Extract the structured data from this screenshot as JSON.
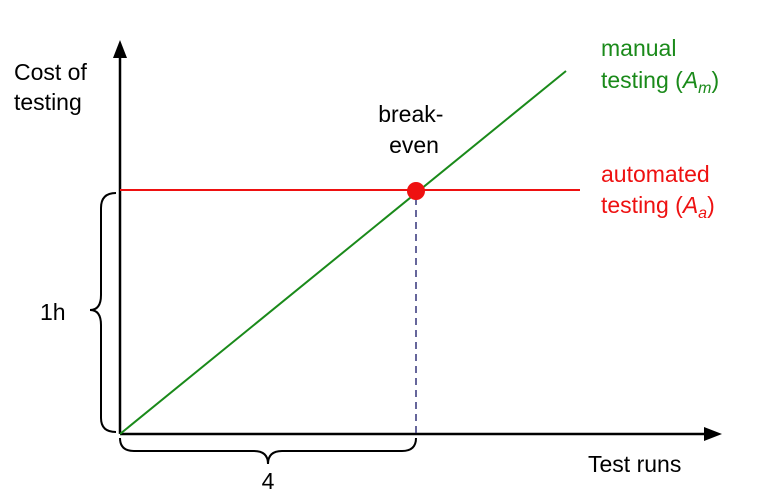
{
  "y_axis_label": [
    "Cost of",
    "testing"
  ],
  "x_axis_label": "Test runs",
  "break_even_label": [
    "break-",
    "even"
  ],
  "brace_y_label": "1h",
  "brace_x_label": "4",
  "manual": {
    "label_line1": "manual",
    "label_line2_prefix": "testing (",
    "symbol": "A",
    "subscript": "m",
    "label_line2_suffix": ")",
    "color": "#1a8a1a"
  },
  "automated": {
    "label_line1": "automated",
    "label_line2_prefix": "testing (",
    "symbol": "A",
    "subscript": "a",
    "label_line2_suffix": ")",
    "color": "#ee1111"
  },
  "break_even_color": "#ee1111",
  "guide_color": "#33337a",
  "axis_color": "#000000"
}
